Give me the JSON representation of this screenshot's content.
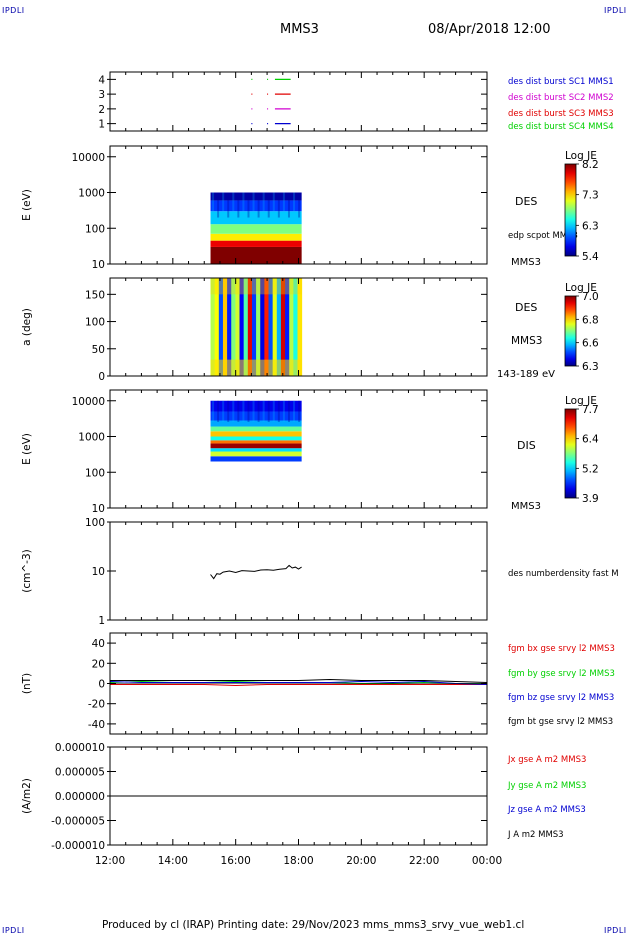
{
  "header": {
    "left_mark": "IPDLI",
    "right_mark": "IPDLI",
    "spacecraft": "MMS3",
    "datetime": "08/Apr/2018 12:00"
  },
  "footer": {
    "text": "Produced by cl (IRAP)   Printing date: 29/Nov/2023   mms_mms3_srvy_vue_web1.cl",
    "left_mark": "IPDLI",
    "right_mark": "IPDLI"
  },
  "colors": {
    "red": "#e00000",
    "green": "#00d000",
    "blue": "#0000d0",
    "magenta": "#d000d0",
    "black": "#000000"
  },
  "chart_data": [
    {
      "type": "scatter",
      "name": "burst-availability",
      "ylim": [
        0.5,
        4.5
      ],
      "y_ticks": [
        "1",
        "2",
        "3",
        "4"
      ],
      "labels": [
        {
          "text": "des dist burst SC1 MMS1",
          "color": "#0000d0"
        },
        {
          "text": "des dist burst SC2 MMS2",
          "color": "#d000d0"
        },
        {
          "text": "des dist burst SC3 MMS3",
          "color": "#e00000"
        },
        {
          "text": "des dist burst SC4 MMS4",
          "color": "#00d000"
        }
      ],
      "segments": [
        {
          "y": 1,
          "x0": 16.5,
          "x1": 16.52,
          "color": "#0000d0"
        },
        {
          "y": 1,
          "x0": 17.0,
          "x1": 17.02,
          "color": "#0000d0"
        },
        {
          "y": 1,
          "x0": 17.25,
          "x1": 17.75,
          "color": "#0000d0"
        },
        {
          "y": 2,
          "x0": 16.5,
          "x1": 16.52,
          "color": "#d000d0"
        },
        {
          "y": 2,
          "x0": 17.0,
          "x1": 17.02,
          "color": "#d000d0"
        },
        {
          "y": 2,
          "x0": 17.25,
          "x1": 17.75,
          "color": "#d000d0"
        },
        {
          "y": 3,
          "x0": 16.5,
          "x1": 16.52,
          "color": "#e00000"
        },
        {
          "y": 3,
          "x0": 17.0,
          "x1": 17.02,
          "color": "#e00000"
        },
        {
          "y": 3,
          "x0": 17.25,
          "x1": 17.75,
          "color": "#e00000"
        },
        {
          "y": 4,
          "x0": 16.5,
          "x1": 16.52,
          "color": "#00d000"
        },
        {
          "y": 4,
          "x0": 17.0,
          "x1": 17.02,
          "color": "#00d000"
        },
        {
          "y": 4,
          "x0": 17.25,
          "x1": 17.75,
          "color": "#00d000"
        }
      ]
    },
    {
      "type": "heatmap",
      "name": "des-energy-spectrogram",
      "ylabel": "E (eV)",
      "yscale": "log",
      "ylim": [
        10,
        20000
      ],
      "y_ticks": [
        "10",
        "100",
        "1000",
        "10000"
      ],
      "labels": [
        {
          "text": "DES",
          "color": "#000000"
        },
        {
          "text": "edp scpot MMS3",
          "color": "#000000"
        },
        {
          "text": "MMS3",
          "color": "#000000"
        }
      ],
      "colorbar": {
        "title": "Log JE",
        "ticks": [
          "8.2",
          "7.3",
          "6.3",
          "5.4"
        ],
        "range": [
          5.4,
          8.2
        ]
      },
      "data_span": {
        "x0": 15.2,
        "x1": 18.1,
        "y0": 10,
        "y1": 1000
      },
      "bands": [
        {
          "y0": 10,
          "y1": 30,
          "value": 8.2
        },
        {
          "y0": 30,
          "y1": 45,
          "value": 7.9
        },
        {
          "y0": 45,
          "y1": 70,
          "value": 7.2
        },
        {
          "y0": 70,
          "y1": 130,
          "value": 6.8
        },
        {
          "y0": 130,
          "y1": 300,
          "value": 6.3
        },
        {
          "y0": 300,
          "y1": 600,
          "value": 5.9
        },
        {
          "y0": 600,
          "y1": 1000,
          "value": 5.5
        }
      ]
    },
    {
      "type": "heatmap",
      "name": "des-pitch-angle",
      "ylabel": "a (deg)",
      "ylim": [
        0,
        180
      ],
      "y_ticks": [
        "0",
        "50",
        "100",
        "150"
      ],
      "labels": [
        {
          "text": "DES",
          "color": "#000000"
        },
        {
          "text": "MMS3",
          "color": "#000000"
        },
        {
          "text": "143-189 eV",
          "color": "#000000"
        }
      ],
      "colorbar": {
        "title": "Log JE",
        "ticks": [
          "7.0",
          "6.8",
          "6.6",
          "6.3"
        ],
        "range": [
          6.3,
          7.0
        ]
      },
      "data_span": {
        "x0": 15.2,
        "x1": 18.1,
        "y0": 0,
        "y1": 180
      }
    },
    {
      "type": "heatmap",
      "name": "dis-energy-spectrogram",
      "ylabel": "E (eV)",
      "yscale": "log",
      "ylim": [
        10,
        20000
      ],
      "y_ticks": [
        "10",
        "100",
        "1000",
        "10000"
      ],
      "labels": [
        {
          "text": "DIS",
          "color": "#000000"
        },
        {
          "text": "MMS3",
          "color": "#000000"
        }
      ],
      "colorbar": {
        "title": "Log JE",
        "ticks": [
          "7.7",
          "6.4",
          "5.2",
          "3.9"
        ],
        "range": [
          3.9,
          7.7
        ]
      },
      "data_span": {
        "x0": 15.2,
        "x1": 18.1,
        "y0": 200,
        "y1": 10000
      },
      "bands": [
        {
          "y0": 200,
          "y1": 280,
          "value": 4.6
        },
        {
          "y0": 280,
          "y1": 380,
          "value": 6.1
        },
        {
          "y0": 380,
          "y1": 470,
          "value": 5.2
        },
        {
          "y0": 470,
          "y1": 640,
          "value": 7.6
        },
        {
          "y0": 640,
          "y1": 780,
          "value": 6.8
        },
        {
          "y0": 780,
          "y1": 1000,
          "value": 5.4
        },
        {
          "y0": 1000,
          "y1": 1400,
          "value": 6.5
        },
        {
          "y0": 1400,
          "y1": 1900,
          "value": 5.7
        },
        {
          "y0": 1900,
          "y1": 2800,
          "value": 5.0
        },
        {
          "y0": 2800,
          "y1": 5000,
          "value": 4.6
        },
        {
          "y0": 5000,
          "y1": 10000,
          "value": 4.3
        }
      ]
    },
    {
      "type": "line",
      "name": "des-number-density",
      "ylabel": "(cm^-3)",
      "yscale": "log",
      "ylim": [
        1,
        100
      ],
      "y_ticks": [
        "1",
        "10",
        "100"
      ],
      "labels": [
        {
          "text": "des numberdensity fast M",
          "color": "#000000"
        }
      ],
      "series": [
        {
          "color": "#000000",
          "x": [
            15.2,
            15.3,
            15.4,
            15.5,
            15.6,
            15.8,
            16.0,
            16.2,
            16.4,
            16.6,
            16.8,
            17.0,
            17.2,
            17.4,
            17.6,
            17.7,
            17.8,
            17.9,
            18.0,
            18.1
          ],
          "y": [
            8.5,
            7.0,
            8.8,
            8.6,
            9.5,
            10.0,
            9.3,
            10.2,
            10.0,
            9.8,
            10.5,
            10.6,
            10.4,
            10.9,
            11.2,
            13.0,
            11.5,
            12.0,
            11.0,
            12.0
          ]
        }
      ]
    },
    {
      "type": "line",
      "name": "fgm-magnetic-field",
      "ylabel": "(nT)",
      "ylim": [
        -50,
        50
      ],
      "y_ticks": [
        "-40",
        "-20",
        "0",
        "20",
        "40"
      ],
      "labels": [
        {
          "text": "fgm bx gse srvy l2 MMS3",
          "color": "#e00000"
        },
        {
          "text": "fgm by gse srvy l2 MMS3",
          "color": "#00d000"
        },
        {
          "text": "fgm bz gse srvy l2 MMS3",
          "color": "#0000d0"
        },
        {
          "text": "fgm bt gse srvy l2 MMS3",
          "color": "#000000"
        }
      ],
      "series": [
        {
          "color": "#e00000",
          "x": [
            12,
            13,
            14,
            15,
            16,
            17,
            18,
            19,
            20,
            21,
            22,
            23,
            24
          ],
          "y": [
            -1,
            -1,
            -1,
            -1,
            -2,
            -1,
            -1,
            -1,
            -1,
            -1,
            -1,
            -1,
            -1
          ]
        },
        {
          "color": "#00d000",
          "x": [
            12,
            13,
            14,
            15,
            16,
            17,
            18,
            19,
            20,
            21,
            22,
            23,
            24
          ],
          "y": [
            1,
            2,
            1,
            1,
            2,
            1,
            1,
            1,
            0,
            0,
            1,
            0,
            0
          ]
        },
        {
          "color": "#0000d0",
          "x": [
            12,
            13,
            14,
            15,
            16,
            17,
            18,
            19,
            20,
            21,
            22,
            23,
            24
          ],
          "y": [
            2,
            1,
            1,
            1,
            1,
            1,
            1,
            1,
            2,
            1,
            2,
            0,
            -1
          ]
        },
        {
          "color": "#000000",
          "x": [
            12,
            13,
            14,
            15,
            16,
            17,
            18,
            19,
            20,
            21,
            22,
            23,
            24
          ],
          "y": [
            3,
            3,
            3,
            3,
            3,
            3,
            3,
            4,
            3,
            3,
            3,
            2,
            1
          ]
        }
      ]
    },
    {
      "type": "line",
      "name": "current-density",
      "ylabel": "(A/m2)",
      "ylim": [
        -1e-05,
        1e-05
      ],
      "y_ticks": [
        "-0.000010",
        "-0.000005",
        "0.000000",
        "0.000005",
        "0.000010"
      ],
      "labels": [
        {
          "text": "Jx gse A m2 MMS3",
          "color": "#e00000"
        },
        {
          "text": "Jy gse A m2 MMS3",
          "color": "#00d000"
        },
        {
          "text": "Jz gse A m2 MMS3",
          "color": "#0000d0"
        },
        {
          "text": "J A m2 MMS3",
          "color": "#000000"
        }
      ],
      "series": [
        {
          "color": "#000000",
          "x": [
            12,
            24
          ],
          "y": [
            0,
            0
          ]
        }
      ]
    }
  ],
  "time_axis": {
    "range": [
      12,
      24
    ],
    "ticks": [
      "12:00",
      "14:00",
      "16:00",
      "18:00",
      "20:00",
      "22:00",
      "00:00"
    ]
  }
}
